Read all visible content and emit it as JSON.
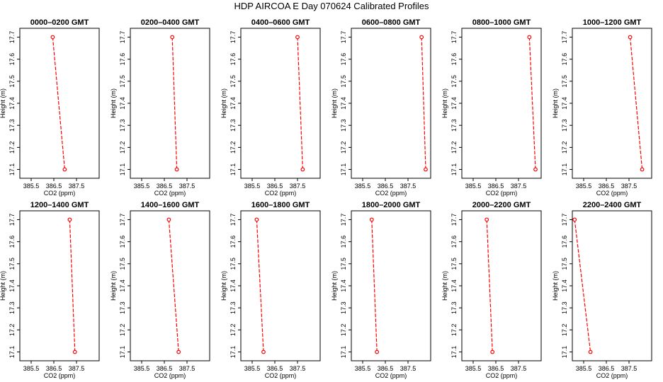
{
  "figure": {
    "title": "HDP AIRCOA E  Day 070624  Calibrated Profiles"
  },
  "axes_common": {
    "xlabel": "CO2 (ppm)",
    "ylabel": "Height (m)",
    "x_ticks": [
      "385.5",
      "386.5",
      "387.5"
    ],
    "y_ticks": [
      "17.1",
      "17.2",
      "17.3",
      "17.4",
      "17.5",
      "17.6",
      "17.7"
    ]
  },
  "colors": {
    "series": "#ff0000",
    "axes": "#000000"
  },
  "chart_data": [
    {
      "type": "line",
      "title": "0000–0200 GMT",
      "xlabel": "CO2 (ppm)",
      "ylabel": "Height (m)",
      "xlim": [
        385.0,
        388.5
      ],
      "ylim": [
        17.06,
        17.74
      ],
      "x_values": [
        386.45,
        386.98
      ],
      "y_values": [
        17.7,
        17.1
      ]
    },
    {
      "type": "line",
      "title": "0200–0400 GMT",
      "xlabel": "CO2 (ppm)",
      "ylabel": "Height (m)",
      "xlim": [
        385.0,
        388.5
      ],
      "ylim": [
        17.06,
        17.74
      ],
      "x_values": [
        386.85,
        387.05
      ],
      "y_values": [
        17.7,
        17.1
      ]
    },
    {
      "type": "line",
      "title": "0400–0600 GMT",
      "xlabel": "CO2 (ppm)",
      "ylabel": "Height (m)",
      "xlim": [
        385.0,
        388.5
      ],
      "ylim": [
        17.06,
        17.74
      ],
      "x_values": [
        387.5,
        387.73
      ],
      "y_values": [
        17.7,
        17.1
      ]
    },
    {
      "type": "line",
      "title": "0600–0800 GMT",
      "xlabel": "CO2 (ppm)",
      "ylabel": "Height (m)",
      "xlim": [
        385.0,
        388.5
      ],
      "ylim": [
        17.06,
        17.74
      ],
      "x_values": [
        388.1,
        388.28
      ],
      "y_values": [
        17.7,
        17.1
      ]
    },
    {
      "type": "line",
      "title": "0800–1000 GMT",
      "xlabel": "CO2 (ppm)",
      "ylabel": "Height (m)",
      "xlim": [
        385.0,
        388.5
      ],
      "ylim": [
        17.06,
        17.74
      ],
      "x_values": [
        387.98,
        388.25
      ],
      "y_values": [
        17.7,
        17.1
      ]
    },
    {
      "type": "line",
      "title": "1000–1200 GMT",
      "xlabel": "CO2 (ppm)",
      "ylabel": "Height (m)",
      "xlim": [
        385.0,
        388.5
      ],
      "ylim": [
        17.06,
        17.74
      ],
      "x_values": [
        387.55,
        388.08
      ],
      "y_values": [
        17.7,
        17.1
      ]
    },
    {
      "type": "line",
      "title": "1200–1400 GMT",
      "xlabel": "CO2 (ppm)",
      "ylabel": "Height (m)",
      "xlim": [
        385.0,
        388.5
      ],
      "ylim": [
        17.06,
        17.74
      ],
      "x_values": [
        387.2,
        387.43
      ],
      "y_values": [
        17.7,
        17.1
      ]
    },
    {
      "type": "line",
      "title": "1400–1600 GMT",
      "xlabel": "CO2 (ppm)",
      "ylabel": "Height (m)",
      "xlim": [
        385.0,
        388.5
      ],
      "ylim": [
        17.06,
        17.74
      ],
      "x_values": [
        386.7,
        387.13
      ],
      "y_values": [
        17.7,
        17.1
      ]
    },
    {
      "type": "line",
      "title": "1600–1800 GMT",
      "xlabel": "CO2 (ppm)",
      "ylabel": "Height (m)",
      "xlim": [
        385.0,
        388.5
      ],
      "ylim": [
        17.06,
        17.74
      ],
      "x_values": [
        385.7,
        386.0
      ],
      "y_values": [
        17.7,
        17.1
      ]
    },
    {
      "type": "line",
      "title": "1800–2000 GMT",
      "xlabel": "CO2 (ppm)",
      "ylabel": "Height (m)",
      "xlim": [
        385.0,
        388.5
      ],
      "ylim": [
        17.06,
        17.74
      ],
      "x_values": [
        385.9,
        386.13
      ],
      "y_values": [
        17.7,
        17.1
      ]
    },
    {
      "type": "line",
      "title": "2000–2200 GMT",
      "xlabel": "CO2 (ppm)",
      "ylabel": "Height (m)",
      "xlim": [
        385.0,
        388.5
      ],
      "ylim": [
        17.06,
        17.74
      ],
      "x_values": [
        386.1,
        386.35
      ],
      "y_values": [
        17.7,
        17.1
      ]
    },
    {
      "type": "line",
      "title": "2200–2400 GMT",
      "xlabel": "CO2 (ppm)",
      "ylabel": "Height (m)",
      "xlim": [
        385.0,
        388.5
      ],
      "ylim": [
        17.06,
        17.74
      ],
      "x_values": [
        385.1,
        385.8
      ],
      "y_values": [
        17.7,
        17.1
      ]
    }
  ]
}
